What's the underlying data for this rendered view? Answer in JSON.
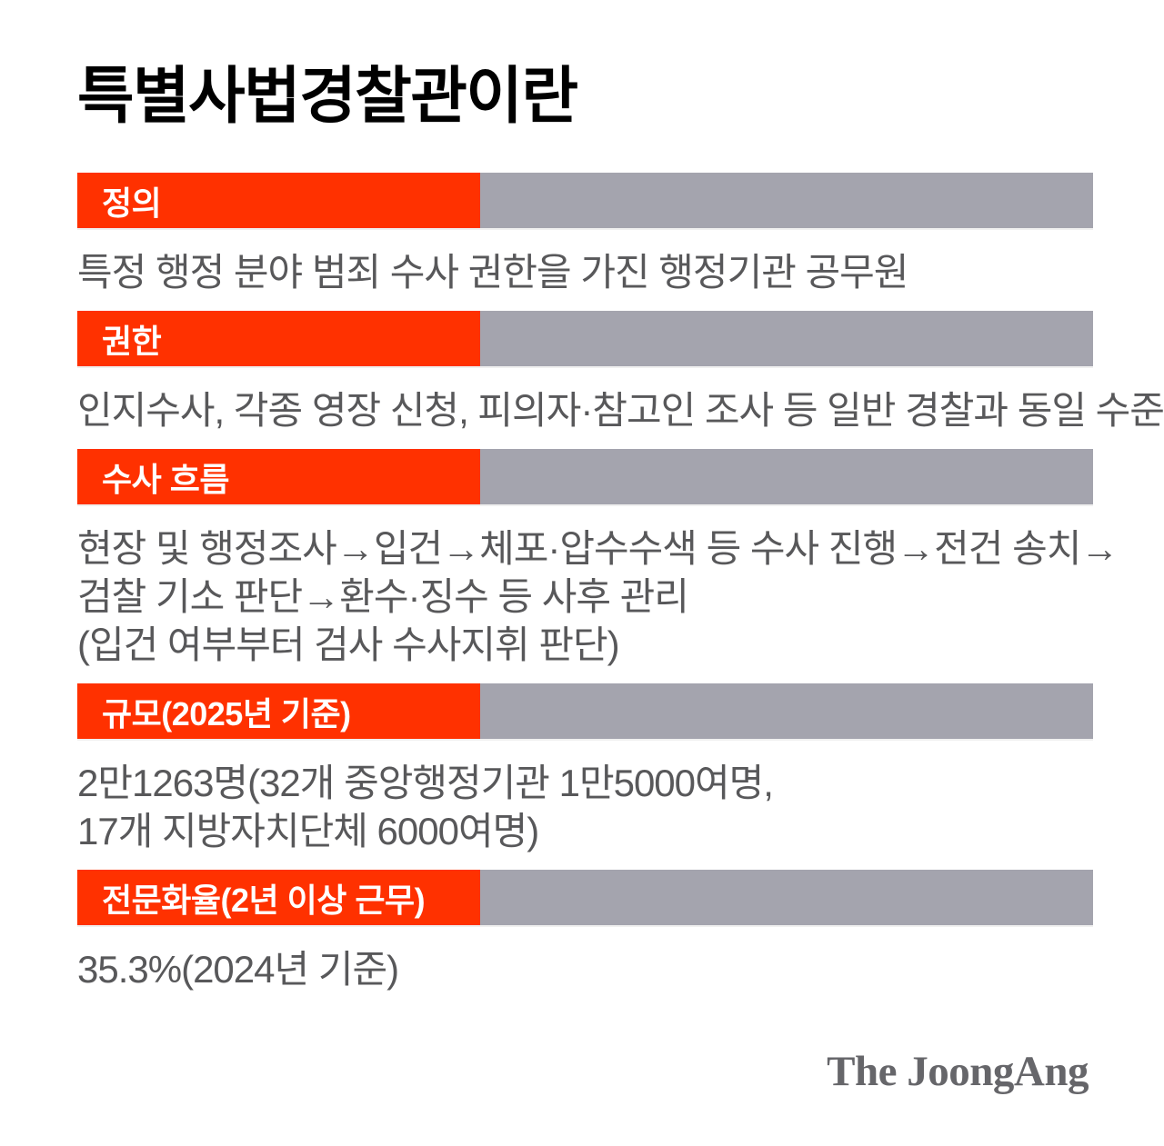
{
  "page": {
    "title": "특별사법경찰관이란",
    "sections": [
      {
        "label": "정의",
        "body": [
          "특정 행정 분야 범죄 수사 권한을 가진 행정기관 공무원"
        ]
      },
      {
        "label": "권한",
        "body": [
          "인지수사, 각종 영장 신청, 피의자·참고인 조사 등 일반 경찰과 동일 수준"
        ]
      },
      {
        "label": "수사 흐름",
        "body": [
          "현장 및 행정조사→입건→체포·압수수색 등 수사 진행→전건 송치→",
          "검찰 기소 판단→환수·징수 등 사후 관리",
          "(입건 여부부터 검사 수사지휘 판단)"
        ]
      },
      {
        "label": "규모(2025년 기준)",
        "body": [
          "2만1263명(32개 중앙행정기관 1만5000여명,",
          "17개 지방자치단체 6000여명)"
        ]
      },
      {
        "label": "전문화율(2년 이상 근무)",
        "body": [
          "35.3%(2024년 기준)"
        ]
      }
    ],
    "logo": "The JoongAng",
    "colors": {
      "accent_red": "#ff3100",
      "bar_gray": "#a4a4ae",
      "body_text": "#58585a",
      "logo_gray": "#66666a"
    }
  }
}
